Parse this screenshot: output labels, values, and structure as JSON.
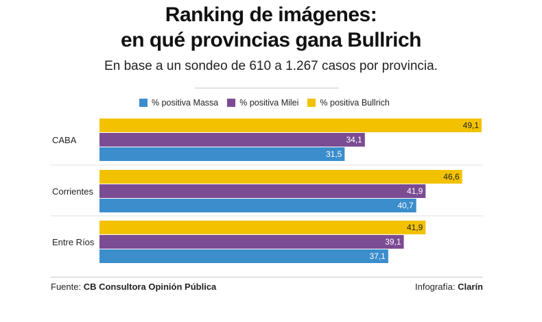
{
  "title_line1": "Ranking de imágenes:",
  "title_line2": "en qué provincias gana Bullrich",
  "subtitle": "En base a un sondeo de 610 a 1.267 casos por provincia.",
  "footer": {
    "source_label": "Fuente:",
    "source_value": "CB Consultora Opinión Pública",
    "credit_label": "Infografía:",
    "credit_value": "Clarín"
  },
  "chart_data": {
    "type": "bar",
    "orientation": "horizontal",
    "categories": [
      "CABA",
      "Corrientes",
      "Entre Ríos"
    ],
    "series": [
      {
        "name": "% positiva Bullrich",
        "color": "#f2c200",
        "values": [
          49.1,
          46.6,
          41.9
        ],
        "labels": [
          "49,1",
          "46,6",
          "41,9"
        ]
      },
      {
        "name": "% positiva Milei",
        "color": "#7b4b93",
        "values": [
          34.1,
          41.9,
          39.1
        ],
        "labels": [
          "34,1",
          "41,9",
          "39,1"
        ]
      },
      {
        "name": "% positiva Massa",
        "color": "#3b8dcc",
        "values": [
          31.5,
          40.7,
          37.1
        ],
        "labels": [
          "31,5",
          "40,7",
          "37,1"
        ]
      }
    ],
    "legend_order": [
      "% positiva Massa",
      "% positiva Milei",
      "% positiva Bullrich"
    ],
    "xlim": [
      0,
      49.1
    ],
    "legend_position": "top-center",
    "grid": false
  }
}
